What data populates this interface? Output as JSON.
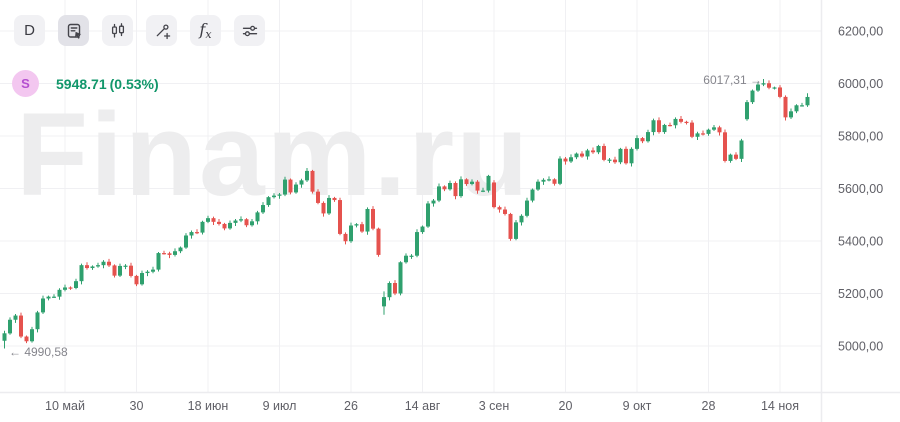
{
  "toolbar": {
    "buttons": [
      {
        "name": "timeframe",
        "label": "D"
      },
      {
        "name": "object-tree",
        "active": true
      },
      {
        "name": "chart-type-candles"
      },
      {
        "name": "drawing-tools"
      },
      {
        "name": "indicators",
        "label_f": "f",
        "label_sub": "x"
      },
      {
        "name": "chart-settings"
      }
    ]
  },
  "legend": {
    "symbol_badge": "S",
    "price": "5948.71",
    "change": "(0.53%)"
  },
  "watermark": "Finam.ru",
  "annotations": {
    "high_label": "6017,31 →",
    "low_label": "← 4990,58"
  },
  "chart_data": {
    "type": "candlestick",
    "symbol": "S",
    "last_price": 5948.71,
    "change_pct": 0.53,
    "high_marker": 6017.31,
    "low_marker": 4990.58,
    "grid": true,
    "legend_position": "top-left",
    "visible_price_range": [
      4825,
      6320
    ],
    "y_axis": {
      "values": [
        6200,
        6000,
        5800,
        5600,
        5400,
        5200,
        5000
      ],
      "labels": [
        "6200,00",
        "6000,00",
        "5800,00",
        "5600,00",
        "5400,00",
        "5200,00",
        "5000,00"
      ]
    },
    "x_ticks": [
      {
        "index": 11,
        "label": "10 май"
      },
      {
        "index": 24,
        "label": "30"
      },
      {
        "index": 37,
        "label": "18 июн"
      },
      {
        "index": 50,
        "label": "9 июл"
      },
      {
        "index": 63,
        "label": "26"
      },
      {
        "index": 76,
        "label": "14 авг"
      },
      {
        "index": 89,
        "label": "3 сен"
      },
      {
        "index": 102,
        "label": "20"
      },
      {
        "index": 115,
        "label": "9 окт"
      },
      {
        "index": 128,
        "label": "28"
      },
      {
        "index": 141,
        "label": "14 ноя"
      }
    ],
    "colors": {
      "up": "#2fa06e",
      "down": "#e5524e",
      "grid": "#f0f0f3",
      "axis_text": "#5f5f66"
    },
    "candles": [
      [
        5020,
        5058,
        4990.58,
        5048.42
      ],
      [
        5048,
        5109,
        5043,
        5100
      ],
      [
        5100,
        5122,
        5088,
        5116
      ],
      [
        5116,
        5127,
        5030,
        5036
      ],
      [
        5036,
        5040,
        5011,
        5018
      ],
      [
        5018,
        5073,
        5013,
        5064
      ],
      [
        5064,
        5134,
        5052,
        5128
      ],
      [
        5128,
        5192,
        5122,
        5181
      ],
      [
        5181,
        5192,
        5174,
        5188
      ],
      [
        5188,
        5197,
        5183,
        5188
      ],
      [
        5188,
        5220,
        5176,
        5214
      ],
      [
        5214,
        5234,
        5208,
        5223
      ],
      [
        5223,
        5227,
        5214,
        5221
      ],
      [
        5221,
        5256,
        5216,
        5247
      ],
      [
        5247,
        5314,
        5235,
        5308
      ],
      [
        5308,
        5319,
        5291,
        5297
      ],
      [
        5297,
        5307,
        5290,
        5303
      ],
      [
        5303,
        5317,
        5298,
        5308
      ],
      [
        5308,
        5327,
        5296,
        5321
      ],
      [
        5321,
        5332,
        5301,
        5307
      ],
      [
        5307,
        5311,
        5261,
        5268
      ],
      [
        5268,
        5314,
        5263,
        5305
      ],
      [
        5305,
        5312,
        5293,
        5306
      ],
      [
        5306,
        5317,
        5261,
        5267
      ],
      [
        5267,
        5271,
        5228,
        5235
      ],
      [
        5235,
        5287,
        5230,
        5278
      ],
      [
        5278,
        5289,
        5266,
        5283
      ],
      [
        5283,
        5302,
        5277,
        5291
      ],
      [
        5291,
        5358,
        5284,
        5354
      ],
      [
        5354,
        5363,
        5348,
        5353
      ],
      [
        5353,
        5359,
        5335,
        5347
      ],
      [
        5347,
        5372,
        5341,
        5361
      ],
      [
        5361,
        5379,
        5354,
        5375
      ],
      [
        5375,
        5430,
        5370,
        5421
      ],
      [
        5421,
        5440,
        5409,
        5434
      ],
      [
        5434,
        5445,
        5426,
        5432
      ],
      [
        5432,
        5477,
        5425,
        5473
      ],
      [
        5473,
        5496,
        5468,
        5487
      ],
      [
        5487,
        5493,
        5461,
        5473
      ],
      [
        5473,
        5484,
        5459,
        5465
      ],
      [
        5465,
        5469,
        5441,
        5448
      ],
      [
        5448,
        5478,
        5443,
        5469
      ],
      [
        5469,
        5484,
        5457,
        5478
      ],
      [
        5478,
        5494,
        5472,
        5483
      ],
      [
        5483,
        5487,
        5453,
        5460
      ],
      [
        5460,
        5484,
        5455,
        5475
      ],
      [
        5475,
        5515,
        5463,
        5509
      ],
      [
        5509,
        5548,
        5503,
        5537
      ],
      [
        5537,
        5571,
        5530,
        5567
      ],
      [
        5567,
        5582,
        5562,
        5573
      ],
      [
        5573,
        5583,
        5561,
        5577
      ],
      [
        5577,
        5645,
        5571,
        5634
      ],
      [
        5634,
        5638,
        5578,
        5585
      ],
      [
        5585,
        5624,
        5580,
        5615
      ],
      [
        5615,
        5637,
        5603,
        5631
      ],
      [
        5631,
        5678,
        5625,
        5667
      ],
      [
        5667,
        5671,
        5581,
        5588
      ],
      [
        5588,
        5597,
        5540,
        5545
      ],
      [
        5545,
        5551,
        5493,
        5505
      ],
      [
        5505,
        5575,
        5499,
        5564
      ],
      [
        5564,
        5568,
        5549,
        5556
      ],
      [
        5556,
        5565,
        5422,
        5427
      ],
      [
        5427,
        5433,
        5387,
        5399
      ],
      [
        5399,
        5470,
        5393,
        5459
      ],
      [
        5459,
        5468,
        5452,
        5464
      ],
      [
        5464,
        5473,
        5431,
        5436
      ],
      [
        5436,
        5528,
        5424,
        5522
      ],
      [
        5522,
        5533,
        5441,
        5447
      ],
      [
        5447,
        5451,
        5340,
        5347
      ],
      [
        5151,
        5208,
        5119.26,
        5186.33
      ],
      [
        5186,
        5246,
        5174,
        5240
      ],
      [
        5240,
        5251,
        5194,
        5200
      ],
      [
        5200,
        5323,
        5193,
        5319
      ],
      [
        5319,
        5353,
        5314,
        5344
      ],
      [
        5344,
        5350,
        5332,
        5344
      ],
      [
        5344,
        5445,
        5338,
        5434
      ],
      [
        5434,
        5459,
        5427,
        5455
      ],
      [
        5455,
        5552,
        5450,
        5543
      ],
      [
        5543,
        5560,
        5531,
        5554
      ],
      [
        5554,
        5619,
        5548,
        5608
      ],
      [
        5608,
        5612,
        5590,
        5597
      ],
      [
        5597,
        5630,
        5592,
        5621
      ],
      [
        5621,
        5627,
        5559,
        5571
      ],
      [
        5571,
        5646,
        5565,
        5635
      ],
      [
        5635,
        5639,
        5610,
        5617
      ],
      [
        5617,
        5635,
        5612,
        5626
      ],
      [
        5626,
        5632,
        5580,
        5592
      ],
      [
        5592,
        5603,
        5586,
        5592
      ],
      [
        5592,
        5652,
        5585,
        5648
      ],
      [
        5623,
        5632,
        5524,
        5529
      ],
      [
        5529,
        5535,
        5508,
        5520
      ],
      [
        5520,
        5531,
        5497,
        5503
      ],
      [
        5503,
        5507,
        5401,
        5408
      ],
      [
        5408,
        5480,
        5403,
        5471
      ],
      [
        5471,
        5502,
        5459,
        5496
      ],
      [
        5496,
        5565,
        5490,
        5554
      ],
      [
        5554,
        5600,
        5547,
        5596
      ],
      [
        5596,
        5635,
        5591,
        5626
      ],
      [
        5626,
        5639,
        5614,
        5633
      ],
      [
        5633,
        5646,
        5627,
        5635
      ],
      [
        5635,
        5639,
        5611,
        5618
      ],
      [
        5618,
        5723,
        5613,
        5714
      ],
      [
        5714,
        5720,
        5691,
        5703
      ],
      [
        5703,
        5730,
        5697,
        5719
      ],
      [
        5719,
        5737,
        5712,
        5733
      ],
      [
        5733,
        5742,
        5717,
        5722
      ],
      [
        5722,
        5751,
        5710,
        5745
      ],
      [
        5745,
        5756,
        5732,
        5738
      ],
      [
        5738,
        5766,
        5731,
        5762
      ],
      [
        5762,
        5771,
        5704,
        5709
      ],
      [
        5709,
        5716,
        5697,
        5710
      ],
      [
        5710,
        5721,
        5694,
        5700
      ],
      [
        5700,
        5755,
        5693,
        5751
      ],
      [
        5751,
        5760,
        5691,
        5696
      ],
      [
        5696,
        5757,
        5684,
        5751
      ],
      [
        5751,
        5803,
        5745,
        5792
      ],
      [
        5792,
        5796,
        5773,
        5780
      ],
      [
        5780,
        5824,
        5775,
        5815
      ],
      [
        5815,
        5866,
        5803,
        5860
      ],
      [
        5860,
        5871,
        5809,
        5815
      ],
      [
        5815,
        5846,
        5808,
        5842
      ],
      [
        5842,
        5851,
        5836,
        5841
      ],
      [
        5841,
        5871,
        5829,
        5865
      ],
      [
        5865,
        5876,
        5848,
        5854
      ],
      [
        5854,
        5858,
        5844,
        5851
      ],
      [
        5851,
        5860,
        5792,
        5797
      ],
      [
        5797,
        5816,
        5785,
        5810
      ],
      [
        5810,
        5821,
        5802,
        5808
      ],
      [
        5808,
        5828,
        5801,
        5824
      ],
      [
        5824,
        5842,
        5819,
        5833
      ],
      [
        5833,
        5839,
        5802,
        5814
      ],
      [
        5814,
        5825,
        5699,
        5705
      ],
      [
        5705,
        5733,
        5698,
        5729
      ],
      [
        5729,
        5738,
        5708,
        5713
      ],
      [
        5713,
        5789,
        5701,
        5783
      ],
      [
        5864,
        5937,
        5858,
        5929
      ],
      [
        5929,
        5977,
        5922,
        5973
      ],
      [
        5973,
        6005,
        5968,
        5996
      ],
      [
        5996,
        6017.31,
        5990,
        6001
      ],
      [
        6001,
        6012,
        5978,
        5984
      ],
      [
        5984,
        5988,
        5977,
        5985
      ],
      [
        5985,
        5994,
        5944,
        5949
      ],
      [
        5949,
        5955,
        5859,
        5871
      ],
      [
        5871,
        5905,
        5865,
        5894
      ],
      [
        5894,
        5921,
        5887,
        5917
      ],
      [
        5917,
        5926,
        5912,
        5917
      ],
      [
        5917,
        5963,
        5911,
        5948.71
      ]
    ]
  }
}
